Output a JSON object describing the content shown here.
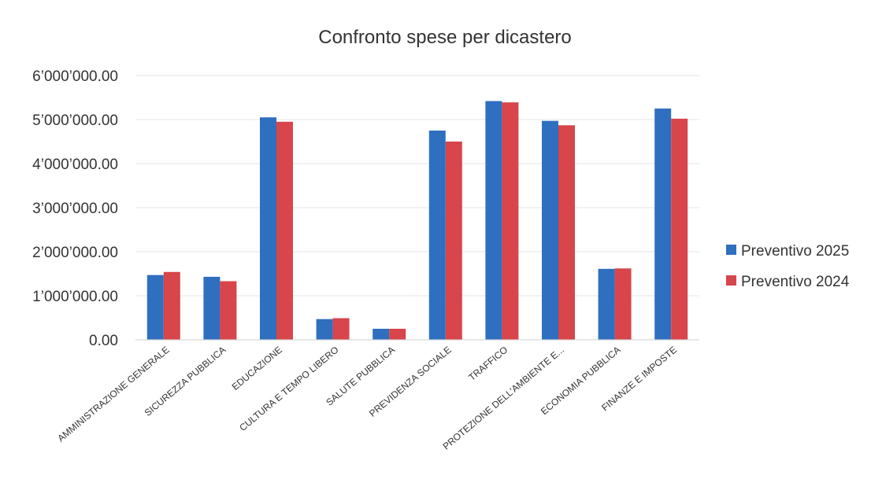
{
  "chart_data": {
    "type": "bar",
    "title": "Confronto spese per dicastero",
    "xlabel": "",
    "ylabel": "",
    "ylim": [
      0,
      6000000
    ],
    "grid": true,
    "legend_position": "right",
    "y_ticks": [
      {
        "value": 0,
        "label": "0.00"
      },
      {
        "value": 1000000,
        "label": "1’000’000.00"
      },
      {
        "value": 2000000,
        "label": "2’000’000.00"
      },
      {
        "value": 3000000,
        "label": "3’000’000.00"
      },
      {
        "value": 4000000,
        "label": "4’000’000.00"
      },
      {
        "value": 5000000,
        "label": "5’000’000.00"
      },
      {
        "value": 6000000,
        "label": "6’000’000.00"
      }
    ],
    "categories": [
      "AMMINISTRAZIONE GENERALE",
      "SICUREZZA PUBBLICA",
      "EDUCAZIONE",
      "CULTURA E TEMPO LIBERO",
      "SALUTE PUBBLICA",
      "PREVIDENZA SOCIALE",
      "TRAFFICO",
      "PROTEZIONE DELL'AMBIENTE E...",
      "ECONOMIA PUBBLICA",
      "FINANZE E IMPOSTE"
    ],
    "series": [
      {
        "name": "Preventivo 2025",
        "color": "#2e6fc0",
        "values": [
          1470000,
          1430000,
          5050000,
          470000,
          250000,
          4750000,
          5420000,
          4970000,
          1610000,
          5250000
        ]
      },
      {
        "name": "Preventivo 2024",
        "color": "#d8454b",
        "values": [
          1540000,
          1330000,
          4950000,
          490000,
          250000,
          4500000,
          5390000,
          4870000,
          1620000,
          5020000
        ]
      }
    ]
  }
}
